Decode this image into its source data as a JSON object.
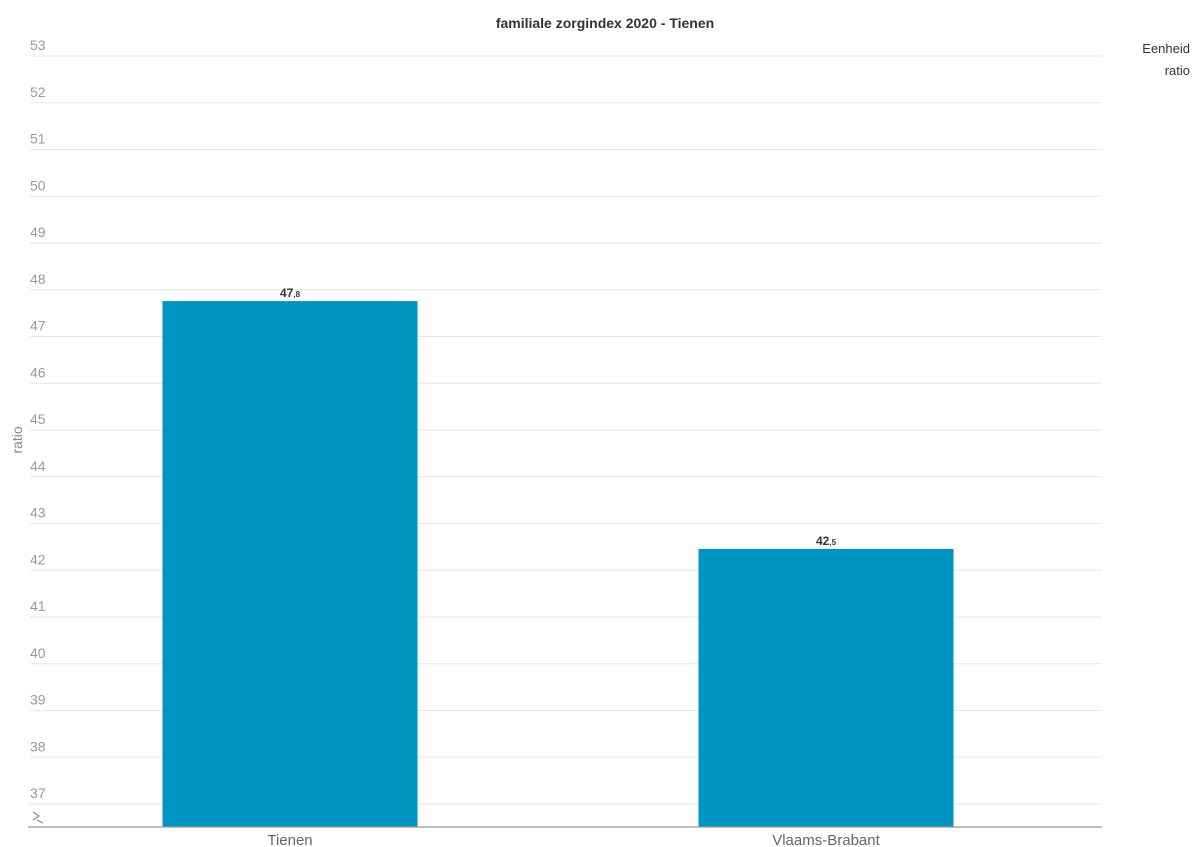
{
  "unit_panel": {
    "label": "Eenheid",
    "value": "ratio"
  },
  "chart_data": {
    "type": "bar",
    "title": "familiale zorgindex 2020 - Tienen",
    "xlabel": "",
    "ylabel": "ratio",
    "categories": [
      "Tienen",
      "Vlaams-Brabant"
    ],
    "series": [
      {
        "values": [
          47.8,
          42.5
        ],
        "color": "#0094c2"
      }
    ],
    "data_labels": [
      {
        "int": "47",
        "dec": ",8"
      },
      {
        "int": "42",
        "dec": ",5"
      }
    ],
    "ylim": [
      36.5,
      53
    ],
    "yticks": [
      37,
      38,
      39,
      40,
      41,
      42,
      43,
      44,
      45,
      46,
      47,
      48,
      49,
      50,
      51,
      52,
      53
    ],
    "axis_break": true,
    "grid": true,
    "legend": "none"
  }
}
